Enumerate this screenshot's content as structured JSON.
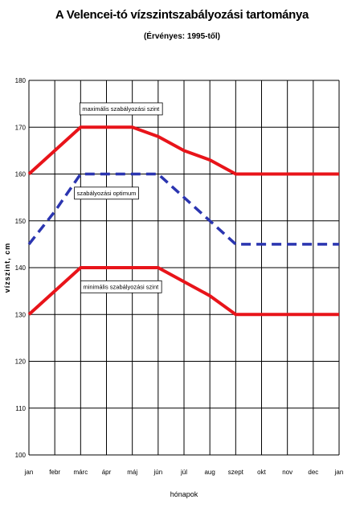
{
  "chart_data": {
    "type": "line",
    "title": "A Velencei-tó vízszintszabályozási tartománya",
    "subtitle": "(Érvényes: 1995-től)",
    "xlabel": "hónapok",
    "ylabel": "vízszint, cm",
    "ylim": [
      100,
      180
    ],
    "yticks": [
      100,
      110,
      120,
      130,
      140,
      150,
      160,
      170,
      180
    ],
    "categories": [
      "jan",
      "febr",
      "márc",
      "ápr",
      "máj",
      "jún",
      "júl",
      "aug",
      "szept",
      "okt",
      "nov",
      "dec",
      "jan"
    ],
    "grid": true,
    "series": [
      {
        "style": "solid",
        "color": "#e8141a",
        "values": [
          160,
          165,
          170,
          170,
          170,
          168,
          165,
          163,
          160,
          160,
          160,
          160,
          160
        ]
      },
      {
        "style": "dashed",
        "color": "#2b35b0",
        "values": [
          145,
          152,
          160,
          160,
          160,
          160,
          155,
          150,
          145,
          145,
          145,
          145,
          145
        ]
      },
      {
        "style": "solid",
        "color": "#e8141a",
        "values": [
          130,
          135,
          140,
          140,
          140,
          140,
          137,
          134,
          130,
          130,
          130,
          130,
          130
        ]
      }
    ],
    "annotations": [
      {
        "text": "maximális szabályozási szint",
        "x": "márc",
        "y": 174
      },
      {
        "text": "szabályozási optimum",
        "x": "ápr",
        "y": 156
      },
      {
        "text": "minimális szabályozási szint",
        "x": "márc",
        "y": 136
      }
    ]
  }
}
